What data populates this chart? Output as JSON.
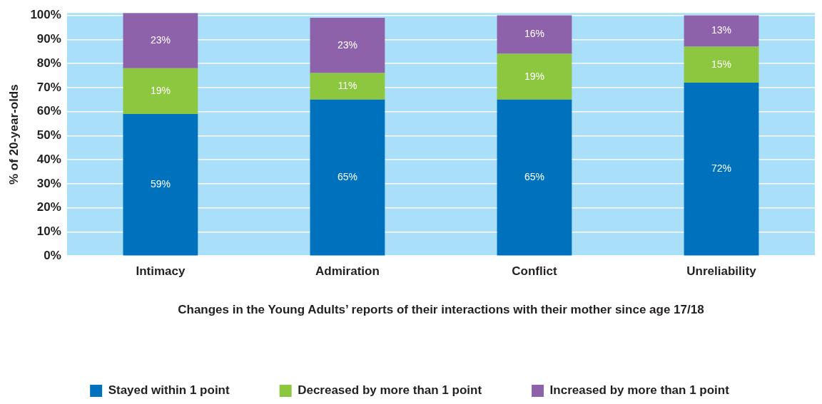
{
  "chart_data": {
    "type": "bar",
    "stacked": true,
    "categories": [
      "Intimacy",
      "Admiration",
      "Conflict",
      "Unreliability"
    ],
    "series": [
      {
        "name": "Stayed within 1 point",
        "color": "#0071bc",
        "values": [
          59,
          65,
          65,
          72
        ]
      },
      {
        "name": "Decreased by more than 1 point",
        "color": "#8dc63f",
        "values": [
          19,
          11,
          19,
          15
        ]
      },
      {
        "name": "Increased by more than 1 point",
        "color": "#8e62aa",
        "values": [
          23,
          23,
          16,
          13
        ]
      }
    ],
    "ylim": [
      0,
      101
    ],
    "yticks": [
      {
        "value": 0,
        "label": "0%"
      },
      {
        "value": 10,
        "label": "10%"
      },
      {
        "value": 20,
        "label": "20%"
      },
      {
        "value": 30,
        "label": "30%"
      },
      {
        "value": 40,
        "label": "40%"
      },
      {
        "value": 50,
        "label": "50%"
      },
      {
        "value": 60,
        "label": "60%"
      },
      {
        "value": 70,
        "label": "70%"
      },
      {
        "value": 80,
        "label": "80%"
      },
      {
        "value": 90,
        "label": "90%"
      },
      {
        "value": 100,
        "label": "100%"
      }
    ],
    "ylabel": "% of 20-year-olds",
    "xlabel": "Changes in the Young Adults’ reports of their interactions with their mother since age 17/18",
    "value_labels": [
      [
        "59%",
        "65%",
        "65%",
        "72%"
      ],
      [
        "19%",
        "11%",
        "19%",
        "15%"
      ],
      [
        "23%",
        "23%",
        "16%",
        "13%"
      ]
    ],
    "grid": "y",
    "legend": "bottom"
  }
}
